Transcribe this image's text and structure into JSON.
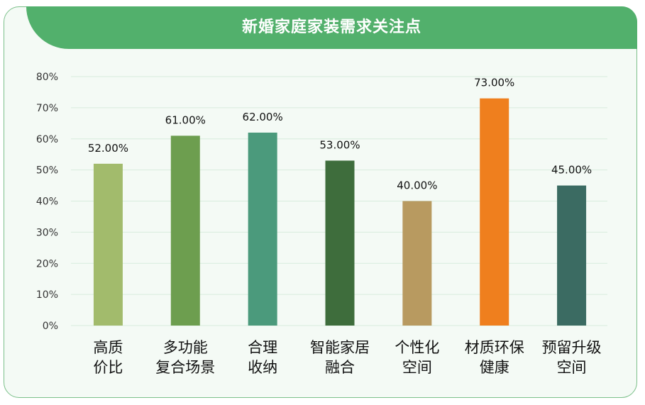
{
  "chart_data": {
    "type": "bar",
    "title": "新婚家庭家装需求关注点",
    "categories": [
      [
        "高质",
        "价比"
      ],
      [
        "多功能",
        "复合场景"
      ],
      [
        "合理",
        "收纳"
      ],
      [
        "智能家居",
        "融合"
      ],
      [
        "个性化",
        "空间"
      ],
      [
        "材质环保",
        "健康"
      ],
      [
        "预留升级",
        "空间"
      ]
    ],
    "values": [
      52,
      61,
      62,
      53,
      40,
      73,
      45
    ],
    "value_labels": [
      "52.00%",
      "61.00%",
      "62.00%",
      "53.00%",
      "40.00%",
      "73.00%",
      "45.00%"
    ],
    "colors": [
      "#a2bb6c",
      "#6d9e4f",
      "#4b9a7c",
      "#3e6d3c",
      "#b89a60",
      "#ef7f1e",
      "#3b6b62"
    ],
    "y_ticks": [
      "0%",
      "10%",
      "20%",
      "30%",
      "40%",
      "50%",
      "60%",
      "70%",
      "80%"
    ],
    "ylim": [
      0,
      80
    ],
    "grid": true,
    "xlabel": "",
    "ylabel": ""
  },
  "colors": {
    "banner": "#52b06c",
    "border": "#7cc08a",
    "background": "#f4faf5",
    "gridline": "#d8ecdd"
  }
}
